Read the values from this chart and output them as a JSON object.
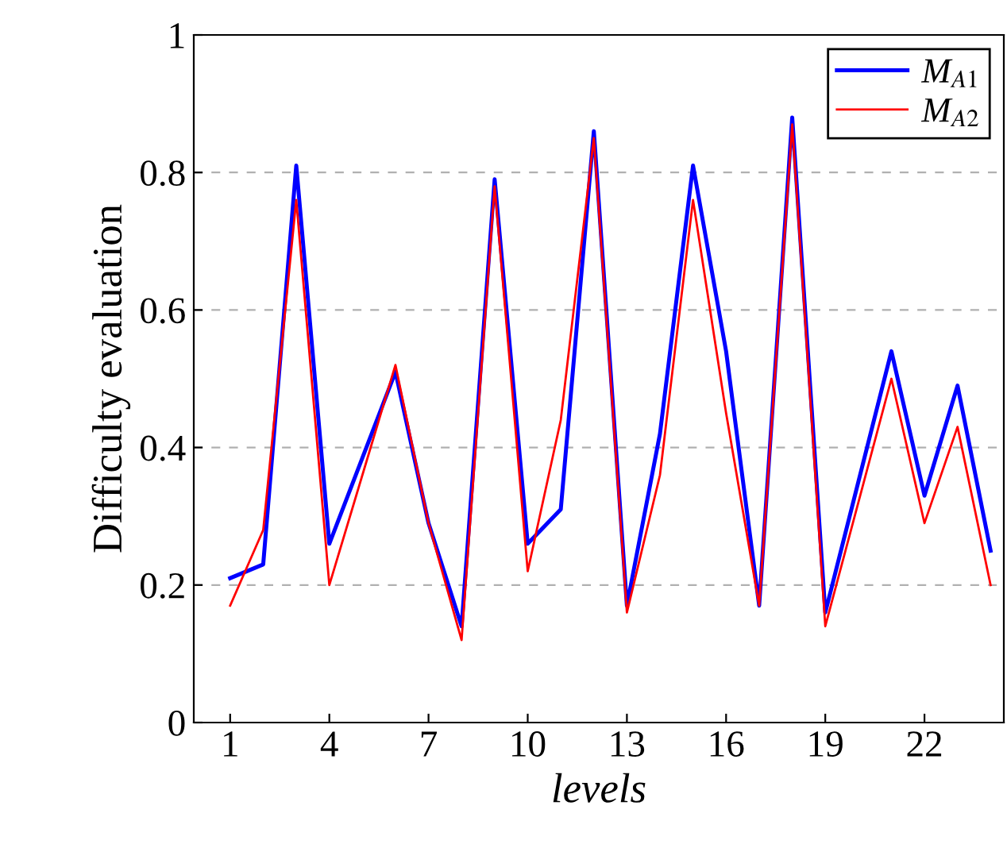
{
  "chart_data": {
    "type": "line",
    "xlabel": "levels",
    "ylabel": "Difficulty evaluation",
    "x": [
      1,
      2,
      3,
      4,
      5,
      6,
      7,
      8,
      9,
      10,
      11,
      12,
      13,
      14,
      15,
      16,
      17,
      18,
      19,
      20,
      21,
      22,
      23,
      24
    ],
    "series": [
      {
        "name": "M$_{A1}$",
        "color": "#0000ff",
        "values": [
          0.21,
          0.23,
          0.81,
          0.26,
          0.385,
          0.51,
          0.29,
          0.14,
          0.79,
          0.26,
          0.31,
          0.86,
          0.17,
          0.42,
          0.81,
          0.54,
          0.17,
          0.88,
          0.16,
          0.35,
          0.54,
          0.33,
          0.49,
          0.25
        ]
      },
      {
        "name": "M$_{A2}$",
        "color": "#ff0000",
        "values": [
          0.17,
          0.28,
          0.76,
          0.2,
          0.36,
          0.52,
          0.29,
          0.12,
          0.78,
          0.22,
          0.44,
          0.85,
          0.16,
          0.36,
          0.76,
          0.45,
          0.17,
          0.87,
          0.14,
          0.32,
          0.5,
          0.29,
          0.43,
          0.2
        ]
      }
    ],
    "xlim": [
      -0.1,
      24.4
    ],
    "xticks": [
      1,
      4,
      7,
      10,
      13,
      16,
      19,
      22
    ],
    "ylim": [
      0,
      1
    ],
    "yticks": [
      0,
      0.2,
      0.4,
      0.6,
      0.8,
      1
    ],
    "grid": "y",
    "legend": "top right",
    "marker": "none",
    "line_style": "solid"
  }
}
